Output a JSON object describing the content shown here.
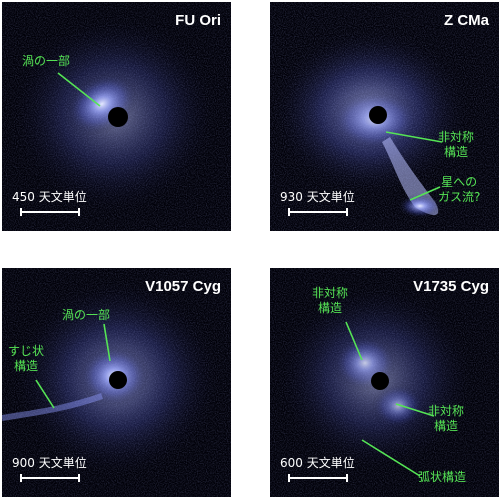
{
  "panels": [
    {
      "title": "FU Ori",
      "scale": "450 天文単位",
      "labels": [
        "渦の一部"
      ]
    },
    {
      "title": "Z CMa",
      "scale": "930 天文単位",
      "labels": [
        "非対称\n構造",
        "星への\nガス流?"
      ]
    },
    {
      "title": "V1057 Cyg",
      "scale": "900 天文単位",
      "labels": [
        "渦の一部",
        "すじ状\n構造"
      ]
    },
    {
      "title": "V1735 Cyg",
      "scale": "600 天文単位",
      "labels": [
        "非対称\n構造",
        "非対称\n構造",
        "弧状構造"
      ]
    }
  ],
  "colors": {
    "annotation": "#55e455",
    "nebula": "#9aa6ff"
  }
}
